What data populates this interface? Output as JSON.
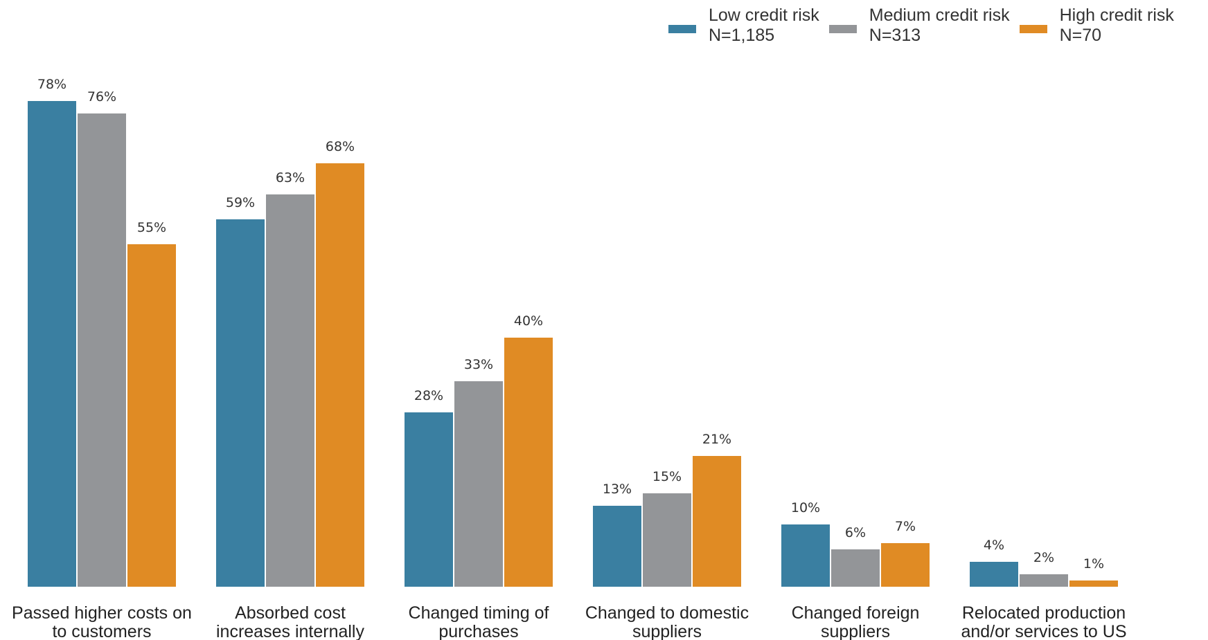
{
  "chart_data": {
    "type": "bar",
    "title": "",
    "xlabel": "",
    "ylabel": "",
    "ylim": [
      0,
      100
    ],
    "grid": false,
    "legend_position": "top-right",
    "categories": [
      [
        "Passed higher costs on",
        "to customers"
      ],
      [
        "Absorbed cost",
        "increases internally"
      ],
      [
        "Changed timing of",
        "purchases"
      ],
      [
        "Changed to domestic",
        "suppliers"
      ],
      [
        "Changed foreign",
        "suppliers"
      ],
      [
        "Relocated production",
        "and/or services to US"
      ]
    ],
    "series": [
      {
        "name": "Low credit risk",
        "sample": "N=1,185",
        "color": "#3a7fa1",
        "values": [
          78,
          59,
          28,
          13,
          10,
          4
        ]
      },
      {
        "name": "Medium credit risk",
        "sample": "N=313",
        "color": "#939598",
        "values": [
          76,
          63,
          33,
          15,
          6,
          2
        ]
      },
      {
        "name": "High credit risk",
        "sample": "N=70",
        "color": "#e08b24",
        "values": [
          55,
          68,
          40,
          21,
          7,
          1
        ]
      }
    ],
    "value_suffix": "%"
  }
}
